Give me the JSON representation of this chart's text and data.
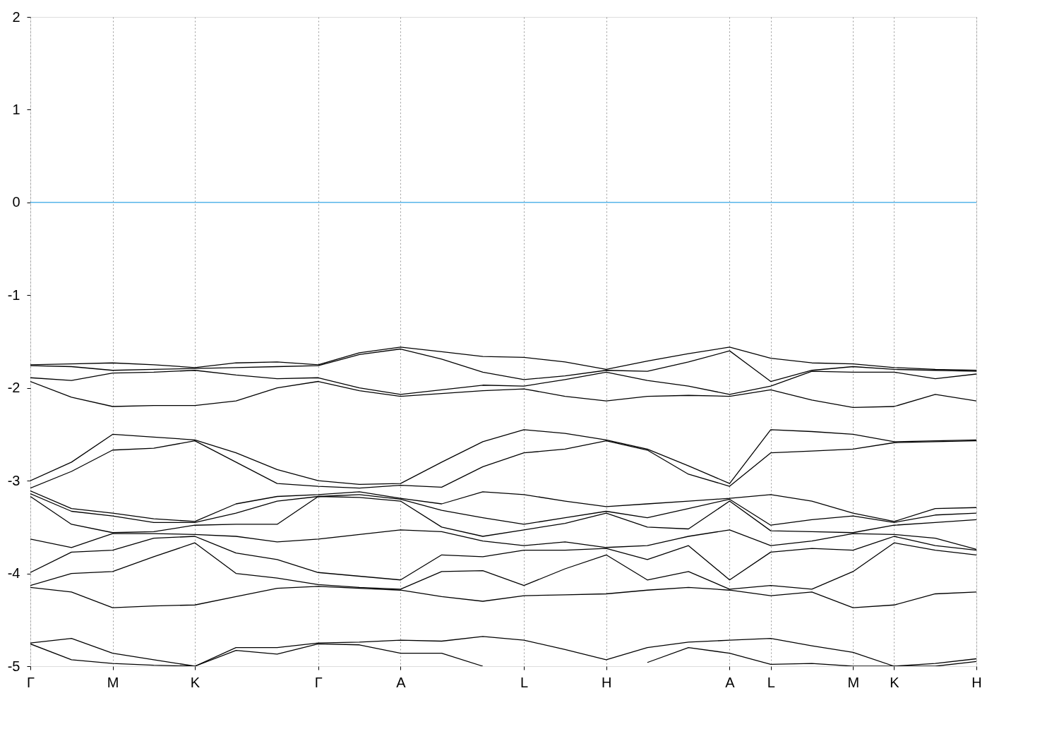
{
  "chart_data": {
    "type": "line",
    "categories": [
      "Γ",
      null,
      "M",
      null,
      "K",
      null,
      null,
      "Γ",
      null,
      "A",
      null,
      null,
      "L",
      null,
      "H",
      null,
      null,
      "A",
      "L",
      null,
      "M",
      "K",
      null,
      "H"
    ],
    "ylim": [
      -5,
      2
    ],
    "yticks": [
      -5,
      -4,
      -3,
      -2,
      -1,
      0,
      1,
      2
    ],
    "grid": "x",
    "line_style": "solid",
    "ref_lines": [
      {
        "axis": "y",
        "value": 0,
        "color": "#56b4e9"
      }
    ],
    "series": [
      {
        "color": "#000000",
        "values": [
          -1.75,
          -1.74,
          -1.73,
          -1.75,
          -1.78,
          -1.73,
          -1.72,
          -1.75,
          -1.62,
          -1.56,
          -1.61,
          -1.66,
          -1.67,
          -1.72,
          -1.8,
          -1.71,
          -1.63,
          -1.56,
          -1.68,
          -1.73,
          -1.74,
          -1.78,
          -1.8,
          -1.81
        ]
      },
      {
        "color": "#000000",
        "values": [
          -1.76,
          -1.77,
          -1.81,
          -1.8,
          -1.79,
          -1.78,
          -1.77,
          -1.76,
          -1.64,
          -1.58,
          -1.69,
          -1.83,
          -1.91,
          -1.87,
          -1.81,
          -1.82,
          -1.72,
          -1.6,
          -1.93,
          -1.81,
          -1.77,
          -1.8,
          -1.81,
          -1.82
        ]
      },
      {
        "color": "#000000",
        "values": [
          -1.89,
          -1.92,
          -1.84,
          -1.83,
          -1.81,
          -1.86,
          -1.9,
          -1.89,
          -2.0,
          -2.07,
          -2.02,
          -1.97,
          -1.98,
          -1.91,
          -1.83,
          -1.92,
          -1.98,
          -2.07,
          -1.98,
          -1.82,
          -1.83,
          -1.83,
          -1.9,
          -1.85
        ]
      },
      {
        "color": "#000000",
        "values": [
          -1.93,
          -2.1,
          -2.2,
          -2.19,
          -2.19,
          -2.14,
          -2.0,
          -1.93,
          -2.03,
          -2.09,
          -2.06,
          -2.03,
          -2.01,
          -2.09,
          -2.14,
          -2.09,
          -2.08,
          -2.09,
          -2.02,
          -2.13,
          -2.21,
          -2.2,
          -2.07,
          -2.14
        ]
      },
      {
        "color": "#000000",
        "values": [
          -3.0,
          -2.8,
          -2.5,
          -2.53,
          -2.56,
          -2.7,
          -2.88,
          -3.0,
          -3.04,
          -3.03,
          -2.8,
          -2.58,
          -2.45,
          -2.49,
          -2.56,
          -2.66,
          -2.84,
          -3.03,
          -2.45,
          -2.47,
          -2.5,
          -2.58,
          -2.57,
          -2.56
        ]
      },
      {
        "color": "#000000",
        "values": [
          -3.08,
          -2.9,
          -2.67,
          -2.65,
          -2.57,
          -2.8,
          -3.03,
          -3.06,
          -3.08,
          -3.05,
          -3.07,
          -2.85,
          -2.7,
          -2.66,
          -2.57,
          -2.67,
          -2.93,
          -3.06,
          -2.7,
          -2.68,
          -2.66,
          -2.59,
          -2.58,
          -2.57
        ]
      },
      {
        "color": "#000000",
        "values": [
          -3.11,
          -3.3,
          -3.35,
          -3.41,
          -3.44,
          -3.25,
          -3.17,
          -3.15,
          -3.12,
          -3.19,
          -3.25,
          -3.12,
          -3.15,
          -3.22,
          -3.28,
          -3.25,
          -3.22,
          -3.19,
          -3.15,
          -3.22,
          -3.35,
          -3.44,
          -3.3,
          -3.29
        ]
      },
      {
        "color": "#000000",
        "values": [
          -3.14,
          -3.33,
          -3.38,
          -3.45,
          -3.45,
          -3.35,
          -3.22,
          -3.17,
          -3.15,
          -3.2,
          -3.32,
          -3.4,
          -3.47,
          -3.4,
          -3.33,
          -3.4,
          -3.3,
          -3.2,
          -3.48,
          -3.42,
          -3.38,
          -3.45,
          -3.37,
          -3.35
        ]
      },
      {
        "color": "#000000",
        "values": [
          -3.17,
          -3.47,
          -3.56,
          -3.55,
          -3.48,
          -3.47,
          -3.47,
          -3.17,
          -3.18,
          -3.22,
          -3.5,
          -3.6,
          -3.53,
          -3.46,
          -3.35,
          -3.5,
          -3.52,
          -3.22,
          -3.54,
          -3.55,
          -3.56,
          -3.48,
          -3.45,
          -3.42
        ]
      },
      {
        "color": "#000000",
        "values": [
          -3.63,
          -3.72,
          -3.57,
          -3.57,
          -3.58,
          -3.6,
          -3.66,
          -3.63,
          -3.58,
          -3.53,
          -3.55,
          -3.65,
          -3.7,
          -3.66,
          -3.72,
          -3.7,
          -3.6,
          -3.53,
          -3.7,
          -3.65,
          -3.57,
          -3.58,
          -3.62,
          -3.74
        ]
      },
      {
        "color": "#000000",
        "values": [
          -3.99,
          -3.77,
          -3.75,
          -3.62,
          -3.6,
          -3.78,
          -3.85,
          -3.99,
          -4.03,
          -4.07,
          -3.8,
          -3.82,
          -3.75,
          -3.75,
          -3.73,
          -3.85,
          -3.7,
          -4.07,
          -3.77,
          -3.73,
          -3.75,
          -3.6,
          -3.7,
          -3.75
        ]
      },
      {
        "color": "#000000",
        "values": [
          -4.13,
          -4.0,
          -3.98,
          -3.82,
          -3.67,
          -4.0,
          -4.05,
          -4.12,
          -4.15,
          -4.17,
          -3.98,
          -3.97,
          -4.13,
          -3.95,
          -3.8,
          -4.07,
          -3.98,
          -4.17,
          -4.13,
          -4.17,
          -3.98,
          -3.67,
          -3.75,
          -3.8
        ]
      },
      {
        "color": "#000000",
        "values": [
          -4.15,
          -4.2,
          -4.37,
          -4.35,
          -4.34,
          -4.25,
          -4.16,
          -4.14,
          -4.16,
          -4.18,
          -4.25,
          -4.3,
          -4.24,
          -4.23,
          -4.22,
          -4.18,
          -4.15,
          -4.18,
          -4.24,
          -4.2,
          -4.37,
          -4.34,
          -4.22,
          -4.2
        ]
      },
      {
        "color": "#000000",
        "values": [
          -4.75,
          -4.7,
          -4.86,
          -4.93,
          -5.0,
          -4.8,
          -4.8,
          -4.75,
          -4.74,
          -4.72,
          -4.73,
          -4.68,
          -4.72,
          -4.82,
          -4.93,
          -4.8,
          -4.74,
          -4.72,
          -4.7,
          -4.78,
          -4.85,
          -5.0,
          -4.97,
          -4.92
        ]
      },
      {
        "color": "#000000",
        "values": [
          -4.76,
          -4.93,
          -4.97,
          -4.99,
          -5.0,
          -4.83,
          -4.87,
          -4.76,
          -4.77,
          -4.86,
          -4.86,
          -5.0,
          null,
          null,
          null,
          -4.96,
          -4.8,
          -4.86,
          -4.98,
          -4.97,
          -5.0,
          -5.0,
          -5.0,
          -4.95
        ]
      }
    ]
  }
}
